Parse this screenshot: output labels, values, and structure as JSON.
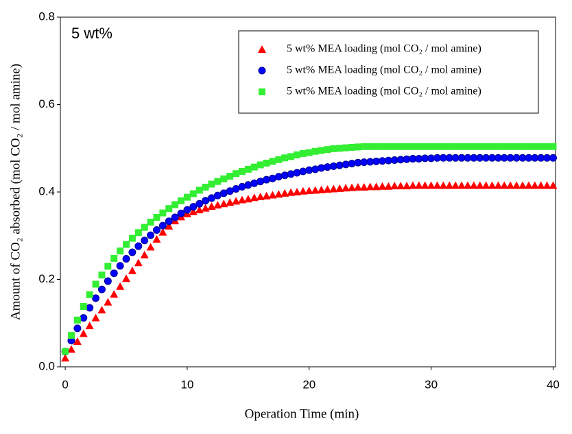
{
  "chart_data": {
    "type": "scatter",
    "annotation": "5 wt%",
    "xlabel": "Operation Time (min)",
    "ylabel": "Amount of CO₂ absorbed (mol CO₂ / mol amine)",
    "xlim": [
      -0.4,
      40.2
    ],
    "ylim": [
      0,
      0.8
    ],
    "xticks": [
      0,
      10,
      20,
      30,
      40
    ],
    "yticks": [
      {
        "value": 0,
        "label": "0.0"
      },
      0.2,
      0.4,
      0.6,
      0.8
    ],
    "grid": false,
    "legend": "upper right",
    "x": [
      0,
      0.5,
      1,
      1.5,
      2,
      2.5,
      3,
      3.5,
      4,
      4.5,
      5,
      5.5,
      6,
      6.5,
      7,
      7.5,
      8,
      8.5,
      9,
      9.5,
      10,
      10.5,
      11,
      11.5,
      12,
      12.5,
      13,
      13.5,
      14,
      14.5,
      15,
      15.5,
      16,
      16.5,
      17,
      17.5,
      18,
      18.5,
      19,
      19.5,
      20,
      20.5,
      21,
      21.5,
      22,
      22.5,
      23,
      23.5,
      24,
      24.5,
      25,
      25.5,
      26,
      26.5,
      27,
      27.5,
      28,
      28.5,
      29,
      29.5,
      30,
      30.5,
      31,
      31.5,
      32,
      32.5,
      33,
      33.5,
      34,
      34.5,
      35,
      35.5,
      36,
      36.5,
      37,
      37.5,
      38,
      38.5,
      39,
      39.5,
      40
    ],
    "series": [
      {
        "name": "5 wt% MEA loading (mol CO₂ / mol amine)",
        "color": "#ff0000",
        "marker": "triangle",
        "values": [
          0.02,
          0.04,
          0.058,
          0.076,
          0.094,
          0.112,
          0.13,
          0.148,
          0.166,
          0.184,
          0.202,
          0.22,
          0.238,
          0.256,
          0.274,
          0.292,
          0.308,
          0.322,
          0.334,
          0.343,
          0.35,
          0.355,
          0.359,
          0.363,
          0.367,
          0.37,
          0.373,
          0.376,
          0.379,
          0.382,
          0.384,
          0.387,
          0.389,
          0.391,
          0.393,
          0.395,
          0.397,
          0.399,
          0.4,
          0.402,
          0.403,
          0.404,
          0.405,
          0.406,
          0.407,
          0.408,
          0.409,
          0.41,
          0.411,
          0.411,
          0.412,
          0.412,
          0.413,
          0.413,
          0.414,
          0.414,
          0.414,
          0.415,
          0.415,
          0.415,
          0.415,
          0.415,
          0.415,
          0.415,
          0.415,
          0.415,
          0.415,
          0.415,
          0.415,
          0.415,
          0.415,
          0.415,
          0.415,
          0.415,
          0.415,
          0.415,
          0.415,
          0.415,
          0.415,
          0.415,
          0.415
        ]
      },
      {
        "name": "5 wt% MEA loading (mol CO₂ / mol amine)",
        "color": "#0000ff",
        "marker": "circle",
        "values": [
          0.035,
          0.06,
          0.088,
          0.112,
          0.135,
          0.157,
          0.177,
          0.196,
          0.214,
          0.231,
          0.247,
          0.262,
          0.276,
          0.289,
          0.301,
          0.313,
          0.323,
          0.333,
          0.342,
          0.351,
          0.359,
          0.366,
          0.373,
          0.38,
          0.386,
          0.392,
          0.397,
          0.402,
          0.407,
          0.412,
          0.416,
          0.42,
          0.424,
          0.428,
          0.431,
          0.435,
          0.438,
          0.441,
          0.444,
          0.447,
          0.45,
          0.452,
          0.455,
          0.457,
          0.459,
          0.461,
          0.463,
          0.465,
          0.467,
          0.468,
          0.469,
          0.47,
          0.471,
          0.472,
          0.473,
          0.474,
          0.475,
          0.476,
          0.476,
          0.477,
          0.477,
          0.478,
          0.478,
          0.478,
          0.478,
          0.478,
          0.478,
          0.478,
          0.478,
          0.478,
          0.478,
          0.478,
          0.478,
          0.478,
          0.478,
          0.478,
          0.478,
          0.478,
          0.478,
          0.478,
          0.478
        ]
      },
      {
        "name": "5 wt% MEA loading (mol CO₂ / mol amine)",
        "color": "#33ee33",
        "marker": "square",
        "values": [
          0.035,
          0.072,
          0.107,
          0.138,
          0.165,
          0.189,
          0.21,
          0.23,
          0.248,
          0.265,
          0.28,
          0.294,
          0.307,
          0.319,
          0.331,
          0.342,
          0.352,
          0.362,
          0.371,
          0.38,
          0.388,
          0.396,
          0.404,
          0.411,
          0.418,
          0.424,
          0.43,
          0.436,
          0.442,
          0.447,
          0.452,
          0.457,
          0.462,
          0.466,
          0.47,
          0.474,
          0.478,
          0.481,
          0.485,
          0.488,
          0.49,
          0.493,
          0.495,
          0.497,
          0.499,
          0.5,
          0.501,
          0.502,
          0.503,
          0.504,
          0.504,
          0.504,
          0.504,
          0.504,
          0.504,
          0.504,
          0.504,
          0.504,
          0.504,
          0.504,
          0.504,
          0.504,
          0.504,
          0.504,
          0.504,
          0.504,
          0.504,
          0.504,
          0.504,
          0.504,
          0.504,
          0.504,
          0.504,
          0.504,
          0.504,
          0.504,
          0.504,
          0.504,
          0.504,
          0.504,
          0.504
        ]
      }
    ]
  }
}
